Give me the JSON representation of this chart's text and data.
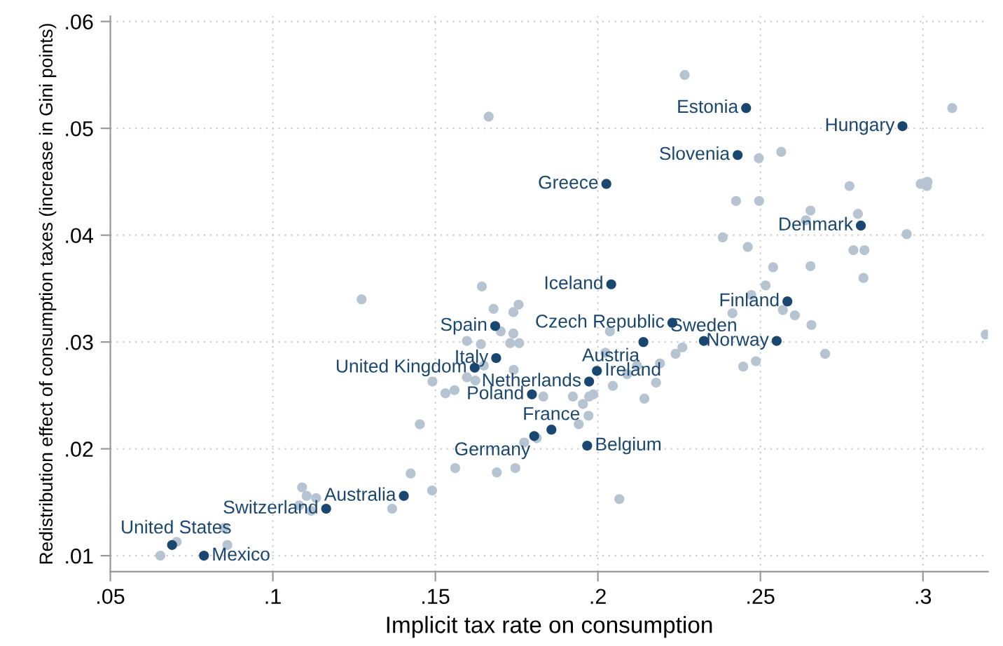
{
  "chart_data": {
    "type": "scatter",
    "xlabel": "Implicit tax rate on consumption",
    "ylabel": "Redistribution effect of consumption taxes (increase in Gini points)",
    "xlim": [
      0.05,
      0.32
    ],
    "ylim": [
      0.0085,
      0.0605
    ],
    "xticks": [
      {
        "value": 0.05,
        "label": ".05"
      },
      {
        "value": 0.1,
        "label": ".1"
      },
      {
        "value": 0.15,
        "label": ".15"
      },
      {
        "value": 0.2,
        "label": ".2"
      },
      {
        "value": 0.25,
        "label": ".25"
      },
      {
        "value": 0.3,
        "label": ".3"
      }
    ],
    "yticks": [
      {
        "value": 0.01,
        "label": ".01"
      },
      {
        "value": 0.02,
        "label": ".02"
      },
      {
        "value": 0.03,
        "label": ".03"
      },
      {
        "value": 0.04,
        "label": ".04"
      },
      {
        "value": 0.05,
        "label": ".05"
      },
      {
        "value": 0.06,
        "label": ".06"
      }
    ],
    "grid": true,
    "marker": "circle",
    "series": [
      {
        "color": "#b6c4d1",
        "x": [
          0.1664,
          0.1643,
          0.1273,
          0.1679,
          0.1756,
          0.174,
          0.2267,
          0.309,
          0.2495,
          0.2564,
          0.2774,
          0.2993,
          0.3014,
          0.3012,
          0.2425,
          0.2496,
          0.2654,
          0.28,
          0.264,
          0.2384,
          0.295,
          0.2461,
          0.2786,
          0.282,
          0.2539,
          0.2654,
          0.2817,
          0.2516,
          0.2472,
          0.2569,
          0.2606,
          0.2657,
          0.2414,
          0.3193,
          0.2699,
          0.226,
          0.2239,
          0.2023,
          0.2037,
          0.2486,
          0.2447,
          0.2191,
          0.212,
          0.209,
          0.2046,
          0.2179,
          0.2143,
          0.1986,
          0.1973,
          0.1923,
          0.1954,
          0.1832,
          0.1971,
          0.1941,
          0.1812,
          0.2066,
          0.1701,
          0.174,
          0.1597,
          0.164,
          0.173,
          0.1758,
          0.1741,
          0.1649,
          0.1597,
          0.1623,
          0.1491,
          0.1531,
          0.1559,
          0.1452,
          0.1773,
          0.1424,
          0.1561,
          0.1689,
          0.1746,
          0.149,
          0.1367,
          0.109,
          0.1104,
          0.1133,
          0.1081,
          0.1118,
          0.085,
          0.086,
          0.0654,
          0.0704
        ],
        "values": [
          0.0511,
          0.0352,
          0.034,
          0.0331,
          0.0335,
          0.0328,
          0.055,
          0.0519,
          0.0472,
          0.0478,
          0.0446,
          0.0448,
          0.045,
          0.0446,
          0.0432,
          0.0432,
          0.0423,
          0.042,
          0.0414,
          0.0398,
          0.0401,
          0.0389,
          0.0386,
          0.0386,
          0.037,
          0.0371,
          0.036,
          0.0353,
          0.0344,
          0.033,
          0.0325,
          0.0316,
          0.0327,
          0.0307,
          0.0289,
          0.0295,
          0.0289,
          0.029,
          0.031,
          0.0282,
          0.0277,
          0.028,
          0.0278,
          0.027,
          0.0259,
          0.0262,
          0.0247,
          0.0251,
          0.0249,
          0.0249,
          0.0242,
          0.0249,
          0.0231,
          0.0223,
          0.021,
          0.0153,
          0.031,
          0.0308,
          0.0301,
          0.0298,
          0.0299,
          0.0299,
          0.0274,
          0.0278,
          0.0267,
          0.0264,
          0.0263,
          0.0252,
          0.0255,
          0.0223,
          0.0206,
          0.0177,
          0.0182,
          0.0178,
          0.0182,
          0.0161,
          0.0144,
          0.0164,
          0.0156,
          0.0154,
          0.0147,
          0.0142,
          0.0126,
          0.011,
          0.01,
          0.0113
        ]
      },
      {
        "color": "#1a476f",
        "x": [
          0.2456,
          0.2937,
          0.243,
          0.2026,
          0.2809,
          0.2041,
          0.2583,
          0.2229,
          0.2326,
          0.255,
          0.214,
          0.1997,
          0.1973,
          0.1797,
          0.1857,
          0.1804,
          0.1967,
          0.1684,
          0.1687,
          0.1621,
          0.1403,
          0.1164,
          0.069,
          0.0788
        ],
        "values": [
          0.0519,
          0.0502,
          0.0475,
          0.0448,
          0.0409,
          0.0354,
          0.0338,
          0.0318,
          0.0301,
          0.0301,
          0.03,
          0.0273,
          0.0263,
          0.0251,
          0.0218,
          0.0212,
          0.0203,
          0.0315,
          0.0285,
          0.0276,
          0.0156,
          0.0144,
          0.011,
          0.01
        ],
        "value_labels": [
          "Estonia",
          "Hungary",
          "Slovenia",
          "Greece",
          "Denmark",
          "Iceland",
          "Finland",
          "Czech Republic",
          "Sweden",
          "Norway",
          "Austria",
          "Ireland",
          "Netherlands",
          "Poland",
          "France",
          "Germany",
          "Belgium",
          "Spain",
          "Italy",
          "United Kingdom",
          "Australia",
          "Switzerland",
          "United States",
          "Mexico"
        ]
      }
    ]
  }
}
